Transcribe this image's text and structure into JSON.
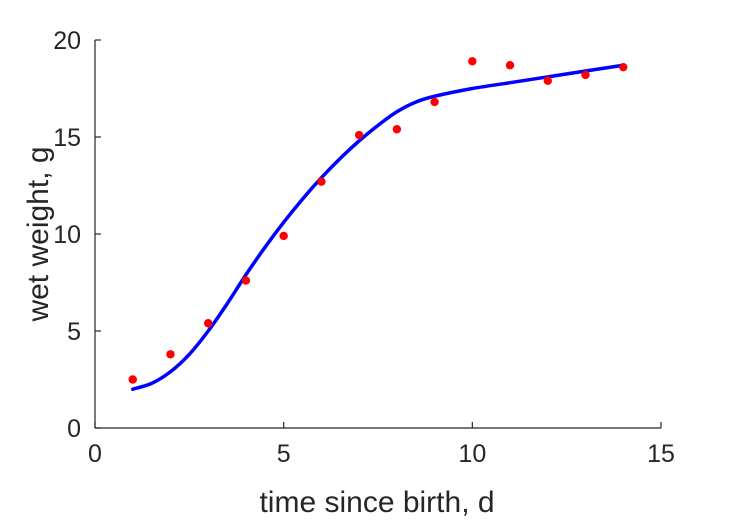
{
  "chart_data": {
    "type": "scatter",
    "xlabel": "time since birth, d",
    "ylabel": "wet weight, g",
    "xlim": [
      0,
      15
    ],
    "ylim": [
      0,
      20
    ],
    "xticks": [
      "0",
      "5",
      "10",
      "15"
    ],
    "yticks": [
      "0",
      "5",
      "10",
      "15",
      "20"
    ],
    "grid": false,
    "series": [
      {
        "kind": "points",
        "color": "#ff0000",
        "x": [
          1,
          2,
          3,
          4,
          5,
          6,
          7,
          8,
          9,
          10,
          11,
          12,
          13,
          14
        ],
        "y": [
          2.5,
          3.8,
          5.4,
          7.6,
          9.9,
          12.7,
          15.1,
          15.4,
          16.8,
          18.9,
          18.7,
          17.9,
          18.2,
          18.6
        ]
      },
      {
        "kind": "line",
        "color": "#0000ff",
        "x": [
          1,
          1.5,
          2,
          2.5,
          3,
          3.5,
          4,
          4.5,
          5,
          5.5,
          6,
          6.5,
          7,
          7.5,
          8,
          8.5,
          9,
          10,
          11,
          12,
          13,
          14
        ],
        "y": [
          2.0,
          2.3,
          2.9,
          3.8,
          5.0,
          6.4,
          7.9,
          9.3,
          10.6,
          11.8,
          12.9,
          13.9,
          14.8,
          15.6,
          16.3,
          16.8,
          17.1,
          17.5,
          17.8,
          18.1,
          18.4,
          18.7
        ]
      }
    ]
  }
}
